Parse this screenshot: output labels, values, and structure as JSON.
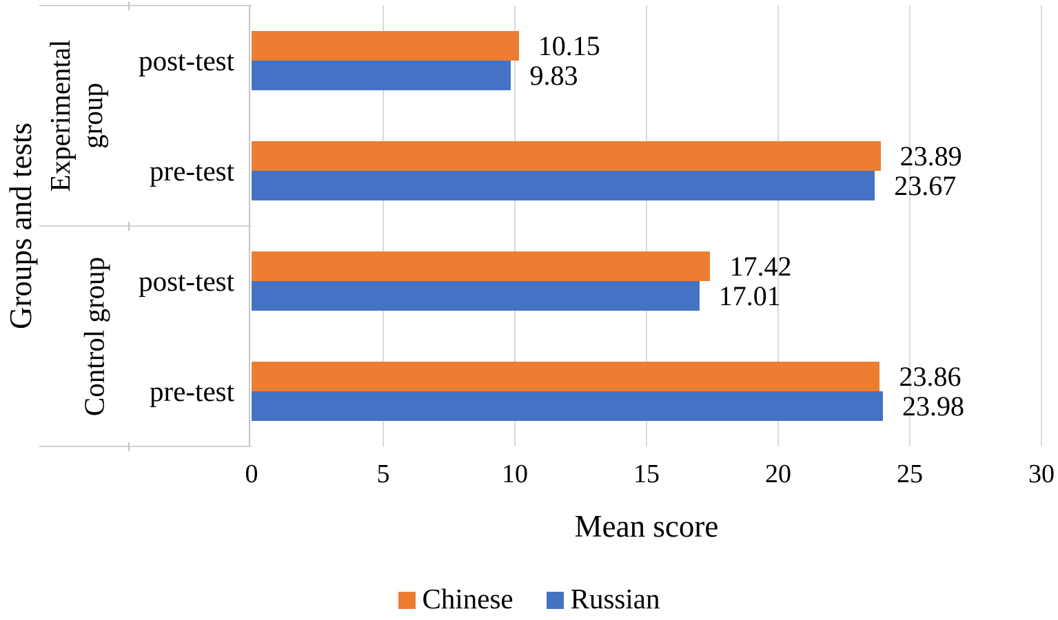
{
  "chart_data": {
    "type": "bar",
    "orientation": "horizontal",
    "title": "",
    "xlabel": "Mean score",
    "ylabel": "Groups and tests",
    "xlim": [
      0,
      30
    ],
    "x_ticks": [
      0,
      5,
      10,
      15,
      20,
      25,
      30
    ],
    "grid": "vertical gridlines on",
    "legend_position": "bottom",
    "data_labels": true,
    "categories": [
      {
        "group": "Experimental group",
        "test": "post-test"
      },
      {
        "group": "Experimental group",
        "test": "pre-test"
      },
      {
        "group": "Control group",
        "test": "post-test"
      },
      {
        "group": "Control group",
        "test": "pre-test"
      }
    ],
    "group_labels": [
      {
        "lines": [
          "Experimental",
          "group"
        ],
        "rows": [
          0,
          1
        ]
      },
      {
        "lines": [
          "Control group"
        ],
        "rows": [
          2,
          3
        ]
      }
    ],
    "series": [
      {
        "name": "Chinese",
        "color": "#ED7D31",
        "values": [
          10.15,
          23.89,
          17.42,
          23.86
        ]
      },
      {
        "name": "Russian",
        "color": "#4472C4",
        "values": [
          9.83,
          23.67,
          17.01,
          23.98
        ]
      }
    ]
  },
  "colors": {
    "chinese": "#ED7D31",
    "russian": "#4472C4",
    "gridline": "#D9D9D9",
    "axis_line": "#C4C4C4",
    "text": "#000000",
    "background": "#FFFFFF"
  }
}
